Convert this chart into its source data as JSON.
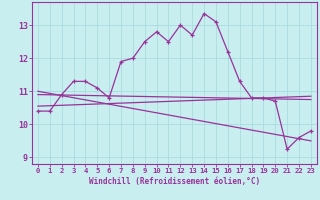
{
  "xlabel": "Windchill (Refroidissement éolien,°C)",
  "bg_color": "#c8eef0",
  "grid_color": "#a8dce0",
  "line_color": "#993399",
  "xlim": [
    -0.5,
    23.5
  ],
  "ylim": [
    8.8,
    13.7
  ],
  "xticks": [
    0,
    1,
    2,
    3,
    4,
    5,
    6,
    7,
    8,
    9,
    10,
    11,
    12,
    13,
    14,
    15,
    16,
    17,
    18,
    19,
    20,
    21,
    22,
    23
  ],
  "yticks": [
    9,
    10,
    11,
    12,
    13
  ],
  "series1_x": [
    0,
    1,
    2,
    3,
    4,
    5,
    6,
    7,
    8,
    9,
    10,
    11,
    12,
    13,
    14,
    15,
    16,
    17,
    18,
    19,
    20,
    21,
    22,
    23
  ],
  "series1_y": [
    10.4,
    10.4,
    10.9,
    11.3,
    11.3,
    11.1,
    10.8,
    11.9,
    12.0,
    12.5,
    12.8,
    12.5,
    13.0,
    12.7,
    13.35,
    13.1,
    12.2,
    11.3,
    10.8,
    10.8,
    10.7,
    9.25,
    9.6,
    9.8
  ],
  "series2_x": [
    0,
    23
  ],
  "series2_y": [
    10.9,
    10.75
  ],
  "series3_x": [
    0,
    23
  ],
  "series3_y": [
    10.55,
    10.85
  ],
  "series4_x": [
    0,
    23
  ],
  "series4_y": [
    11.0,
    9.5
  ]
}
